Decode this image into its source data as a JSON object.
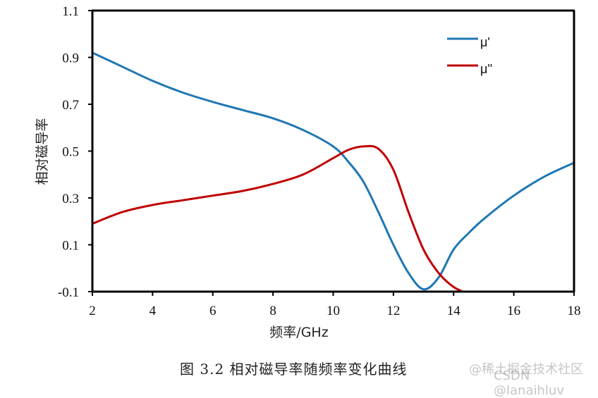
{
  "chart_data": {
    "type": "line",
    "title": "图 3.2  相对磁导率随频率变化曲线",
    "xlabel": "频率/GHz",
    "ylabel": "相对磁导率",
    "xlim": [
      2,
      18
    ],
    "ylim": [
      -0.1,
      1.1
    ],
    "x_ticks": [
      2,
      4,
      6,
      8,
      10,
      12,
      14,
      16,
      18
    ],
    "y_ticks": [
      -0.1,
      0.1,
      0.3,
      0.5,
      0.7,
      0.9,
      1.1
    ],
    "grid": false,
    "legend_position": "upper right",
    "series": [
      {
        "name": "μ'",
        "color": "#1f77b4",
        "x": [
          2,
          3,
          4,
          5,
          6,
          7,
          8,
          9,
          10,
          10.5,
          11,
          11.5,
          12,
          12.5,
          13,
          13.5,
          14,
          14.5,
          15,
          16,
          17,
          18
        ],
        "values": [
          0.92,
          0.86,
          0.8,
          0.75,
          0.71,
          0.675,
          0.64,
          0.59,
          0.52,
          0.455,
          0.37,
          0.24,
          0.1,
          -0.02,
          -0.09,
          -0.04,
          0.08,
          0.15,
          0.21,
          0.31,
          0.39,
          0.45
        ]
      },
      {
        "name": "μ''",
        "color": "#c00000",
        "x": [
          2,
          3,
          4,
          5,
          6,
          7,
          8,
          9,
          10,
          10.5,
          11,
          11.5,
          12,
          12.5,
          13,
          13.5,
          14,
          14.5
        ],
        "values": [
          0.19,
          0.24,
          0.27,
          0.29,
          0.31,
          0.33,
          0.36,
          0.4,
          0.47,
          0.505,
          0.52,
          0.51,
          0.42,
          0.24,
          0.08,
          -0.02,
          -0.08,
          -0.11
        ]
      }
    ]
  },
  "figure": {
    "caption": "图 3.2  相对磁导率随频率变化曲线",
    "x_axis_title": "频率/GHz",
    "y_axis_title": "相对磁导率",
    "x_tick_labels": [
      "2",
      "4",
      "6",
      "8",
      "10",
      "12",
      "14",
      "16",
      "18"
    ],
    "y_tick_labels": [
      "-0.1",
      "0.1",
      "0.3",
      "0.5",
      "0.7",
      "0.9",
      "1.1"
    ],
    "legend": [
      {
        "label": "μ'",
        "color": "#1f77b4"
      },
      {
        "label": "μ''",
        "color": "#c00000"
      }
    ]
  },
  "watermark": {
    "line1": "@稀土掘金技术社区",
    "line2": "CSDN @lanaihluv"
  }
}
